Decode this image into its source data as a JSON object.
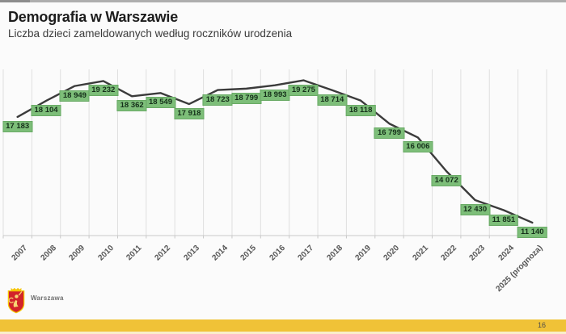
{
  "slide": {
    "title": "Demografia w Warszawie",
    "subtitle": "Liczba dzieci zameldowanych według roczników urodzenia",
    "page_number": "16",
    "logo_text": "Warszawa"
  },
  "colors": {
    "line": "#3b3b3b",
    "gridline": "#dfdfdf",
    "axis": "#c8c8c8",
    "label_bg": "#7dbe79",
    "label_border": "#69aa65",
    "label_text": "#15301a",
    "footer_yellow": "#f0c237",
    "shield_red": "#d2232a",
    "shield_yellow": "#f5c400"
  },
  "chart_data": {
    "type": "line",
    "title": "Liczba dzieci zameldowanych według roczników urodzenia",
    "categories": [
      "2007",
      "2008",
      "2009",
      "2010",
      "2011",
      "2012",
      "2013",
      "2014",
      "2015",
      "2016",
      "2017",
      "2018",
      "2019",
      "2020",
      "2021",
      "2022",
      "2023",
      "2024",
      "2025 (prognoza)"
    ],
    "values": [
      17183,
      18104,
      18949,
      19232,
      18362,
      18549,
      17918,
      18723,
      18799,
      18993,
      19275,
      18714,
      18118,
      16799,
      16006,
      14072,
      12430,
      11851,
      11140
    ],
    "data_labels": [
      "17 183",
      "18 104",
      "18 949",
      "19 232",
      "18 362",
      "18 549",
      "17 918",
      "18 723",
      "18 799",
      "18 993",
      "19 275",
      "18 714",
      "18 118",
      "16 799",
      "16 006",
      "14 072",
      "12 430",
      "11 851",
      "11 140"
    ],
    "xlabel": "",
    "ylabel": "",
    "ylim": [
      10400,
      19900
    ],
    "grid": "vertical-only",
    "legend": "none",
    "series_color": "#3b3b3b",
    "data_label_style": "green-box-below-point"
  }
}
